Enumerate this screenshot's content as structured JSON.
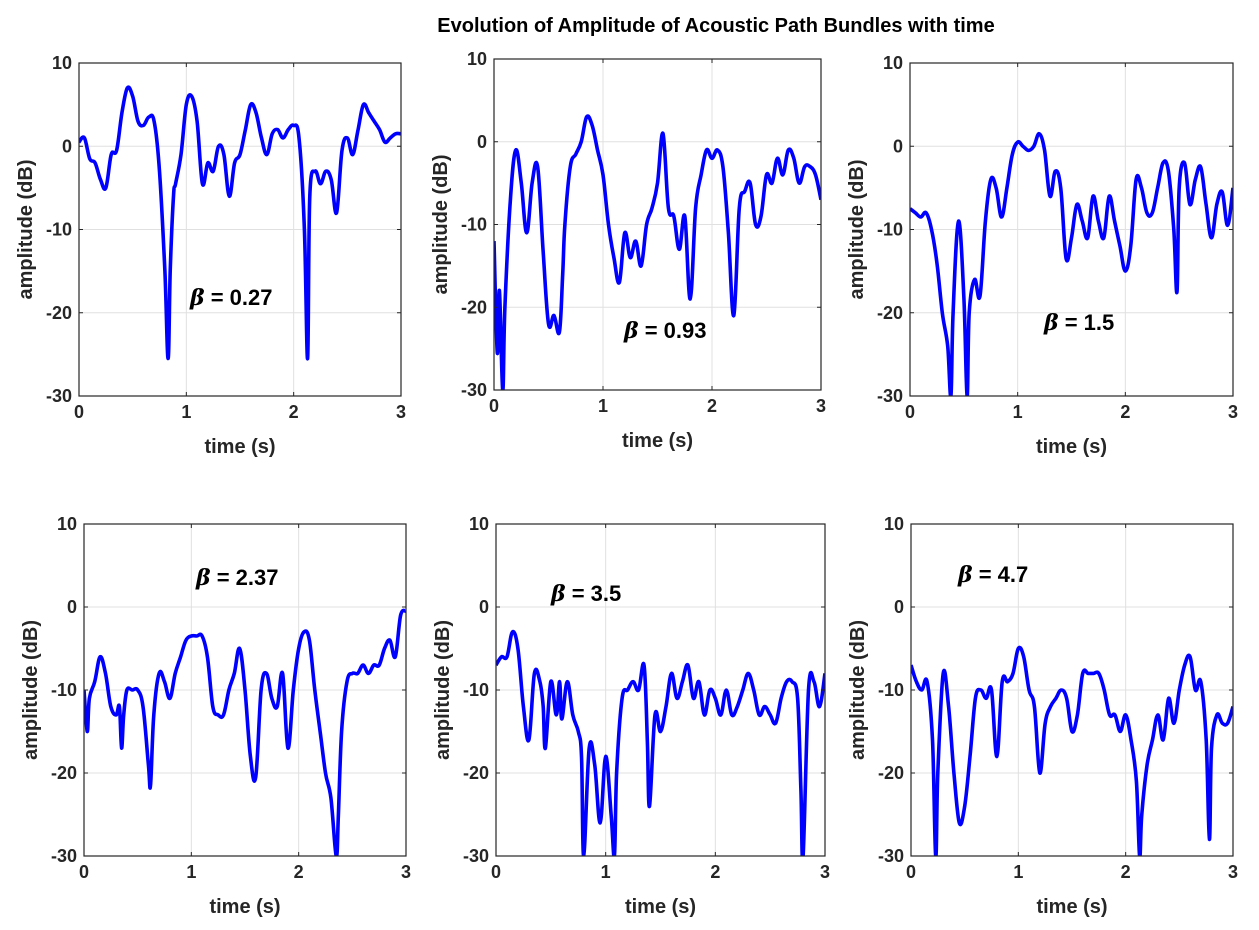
{
  "figure": {
    "title": "Evolution of Amplitude of Acoustic Path Bundles with time",
    "line_color": "#0000ff",
    "grid_color": "#e0e0e0",
    "axis_color": "#262626"
  },
  "chart_data": [
    {
      "type": "line",
      "xlabel": "time (s)",
      "ylabel": "amplitude (dB)",
      "xlim": [
        0,
        3
      ],
      "ylim": [
        -30,
        10
      ],
      "xticks": [
        "0",
        "1",
        "2",
        "3"
      ],
      "yticks": [
        "10",
        "0",
        "-10",
        "-20",
        "-30"
      ],
      "grid": true,
      "annotation": {
        "symbol": "β",
        "text": " = 0.27"
      },
      "x": [
        0,
        0.05,
        0.1,
        0.15,
        0.2,
        0.25,
        0.3,
        0.35,
        0.4,
        0.45,
        0.5,
        0.55,
        0.6,
        0.65,
        0.7,
        0.75,
        0.8,
        0.83,
        0.85,
        0.88,
        0.9,
        0.95,
        1.0,
        1.05,
        1.1,
        1.15,
        1.2,
        1.25,
        1.3,
        1.35,
        1.4,
        1.45,
        1.5,
        1.55,
        1.6,
        1.65,
        1.7,
        1.75,
        1.8,
        1.85,
        1.9,
        1.95,
        2.0,
        2.05,
        2.1,
        2.13,
        2.15,
        2.2,
        2.25,
        2.3,
        2.35,
        2.4,
        2.45,
        2.5,
        2.55,
        2.6,
        2.65,
        2.7,
        2.75,
        2.8,
        2.85,
        2.9,
        2.95,
        3.0
      ],
      "y": [
        0.5,
        1.0,
        -1.5,
        -2.0,
        -4.0,
        -5.0,
        -1.0,
        -0.5,
        4.0,
        7.0,
        6.0,
        3.0,
        2.5,
        3.5,
        3.0,
        -3.0,
        -15.0,
        -25.5,
        -15.0,
        -6.0,
        -4.5,
        -1.0,
        5.0,
        6.0,
        3.0,
        -4.5,
        -2.0,
        -3.0,
        0.0,
        -1.0,
        -6.0,
        -2.0,
        -1.0,
        2.0,
        5.0,
        4.0,
        1.0,
        -1.0,
        1.5,
        2.0,
        1.0,
        2.0,
        2.5,
        1.0,
        -10.0,
        -25.5,
        -6.0,
        -3.0,
        -4.5,
        -3.0,
        -4.0,
        -8.0,
        -0.5,
        1.0,
        -1.0,
        2.0,
        5.0,
        4.0,
        3.0,
        2.0,
        0.5,
        1.0,
        1.5,
        1.5
      ]
    },
    {
      "type": "line",
      "xlabel": "time (s)",
      "ylabel": "amplitude (dB)",
      "xlim": [
        0,
        3
      ],
      "ylim": [
        -30,
        10
      ],
      "xticks": [
        "0",
        "1",
        "2",
        "3"
      ],
      "yticks": [
        "10",
        "0",
        "-10",
        "-20",
        "-30"
      ],
      "grid": true,
      "annotation": {
        "symbol": "β",
        "text": " = 0.93"
      },
      "x": [
        0,
        0.03,
        0.05,
        0.08,
        0.1,
        0.15,
        0.2,
        0.25,
        0.3,
        0.35,
        0.4,
        0.45,
        0.5,
        0.55,
        0.6,
        0.63,
        0.65,
        0.7,
        0.75,
        0.8,
        0.85,
        0.9,
        0.95,
        1.0,
        1.05,
        1.1,
        1.15,
        1.2,
        1.25,
        1.3,
        1.35,
        1.4,
        1.45,
        1.5,
        1.55,
        1.6,
        1.65,
        1.7,
        1.75,
        1.8,
        1.85,
        1.9,
        1.95,
        2.0,
        2.05,
        2.1,
        2.15,
        2.2,
        2.25,
        2.3,
        2.35,
        2.4,
        2.45,
        2.5,
        2.55,
        2.6,
        2.65,
        2.7,
        2.75,
        2.8,
        2.85,
        2.9,
        2.95,
        3.0
      ],
      "y": [
        -12.0,
        -25.5,
        -18.0,
        -30.0,
        -20.0,
        -7.0,
        -1.0,
        -5.0,
        -11.0,
        -5.0,
        -3.0,
        -13.0,
        -22.0,
        -21.0,
        -23.0,
        -16.0,
        -10.0,
        -3.0,
        -1.5,
        0.0,
        3.0,
        2.0,
        -1.0,
        -4.0,
        -10.0,
        -14.0,
        -17.0,
        -11.0,
        -14.0,
        -12.0,
        -15.0,
        -10.0,
        -8.0,
        -5.0,
        1.0,
        -8.0,
        -9.0,
        -13.0,
        -9.0,
        -19.0,
        -8.0,
        -4.0,
        -1.0,
        -2.0,
        -1.0,
        -3.0,
        -11.0,
        -21.0,
        -8.0,
        -6.0,
        -5.0,
        -10.0,
        -9.0,
        -4.0,
        -5.0,
        -2.0,
        -4.0,
        -1.0,
        -2.0,
        -5.0,
        -3.0,
        -3.0,
        -4.0,
        -7.0
      ]
    },
    {
      "type": "line",
      "xlabel": "time (s)",
      "ylabel": "amplitude (dB)",
      "xlim": [
        0,
        3
      ],
      "ylim": [
        -30,
        10
      ],
      "xticks": [
        "0",
        "1",
        "2",
        "3"
      ],
      "yticks": [
        "10",
        "0",
        "-10",
        "-20",
        "-30"
      ],
      "grid": true,
      "annotation": {
        "symbol": "β",
        "text": " = 1.5"
      },
      "x": [
        0,
        0.05,
        0.1,
        0.15,
        0.2,
        0.25,
        0.3,
        0.35,
        0.38,
        0.4,
        0.45,
        0.5,
        0.53,
        0.55,
        0.6,
        0.65,
        0.7,
        0.75,
        0.8,
        0.85,
        0.9,
        0.95,
        1.0,
        1.05,
        1.1,
        1.15,
        1.2,
        1.25,
        1.3,
        1.35,
        1.4,
        1.45,
        1.5,
        1.55,
        1.6,
        1.65,
        1.7,
        1.75,
        1.8,
        1.85,
        1.9,
        1.95,
        2.0,
        2.05,
        2.1,
        2.15,
        2.2,
        2.25,
        2.3,
        2.35,
        2.4,
        2.45,
        2.48,
        2.5,
        2.55,
        2.6,
        2.65,
        2.7,
        2.75,
        2.8,
        2.85,
        2.9,
        2.95,
        3.0
      ],
      "y": [
        -7.5,
        -8.0,
        -8.5,
        -8.0,
        -10.0,
        -14.0,
        -20.0,
        -24.0,
        -30.0,
        -20.0,
        -9.0,
        -18.0,
        -30.0,
        -20.0,
        -16.0,
        -18.0,
        -9.0,
        -4.0,
        -5.0,
        -8.5,
        -5.0,
        -1.0,
        0.5,
        0.0,
        -0.5,
        0.0,
        1.5,
        -0.5,
        -6.0,
        -3.0,
        -5.0,
        -13.5,
        -11.0,
        -7.0,
        -9.0,
        -11.0,
        -6.0,
        -9.0,
        -11.0,
        -6.0,
        -9.0,
        -12.0,
        -15.0,
        -12.0,
        -4.0,
        -5.0,
        -8.0,
        -8.0,
        -5.0,
        -2.0,
        -3.0,
        -10.0,
        -17.5,
        -5.0,
        -2.0,
        -7.0,
        -4.0,
        -2.5,
        -7.0,
        -11.0,
        -7.0,
        -5.5,
        -9.5,
        -5.0
      ]
    },
    {
      "type": "line",
      "xlabel": "time (s)",
      "ylabel": "amplitude (dB)",
      "xlim": [
        0,
        3
      ],
      "ylim": [
        -30,
        10
      ],
      "xticks": [
        "0",
        "1",
        "2",
        "3"
      ],
      "yticks": [
        "10",
        "0",
        "-10",
        "-20",
        "-30"
      ],
      "grid": true,
      "annotation": {
        "symbol": "β",
        "text": " = 2.37"
      },
      "x": [
        0,
        0.03,
        0.05,
        0.1,
        0.15,
        0.2,
        0.25,
        0.3,
        0.33,
        0.35,
        0.37,
        0.4,
        0.45,
        0.5,
        0.55,
        0.6,
        0.62,
        0.65,
        0.7,
        0.75,
        0.8,
        0.85,
        0.9,
        0.95,
        1.0,
        1.05,
        1.1,
        1.15,
        1.2,
        1.25,
        1.3,
        1.35,
        1.4,
        1.45,
        1.5,
        1.55,
        1.6,
        1.65,
        1.7,
        1.75,
        1.8,
        1.85,
        1.9,
        1.95,
        2.0,
        2.05,
        2.1,
        2.15,
        2.2,
        2.25,
        2.3,
        2.35,
        2.37,
        2.4,
        2.45,
        2.5,
        2.55,
        2.6,
        2.65,
        2.7,
        2.75,
        2.8,
        2.85,
        2.9,
        2.95,
        3.0
      ],
      "y": [
        -10.0,
        -15.0,
        -11.0,
        -9.0,
        -6.0,
        -8.0,
        -12.0,
        -13.0,
        -12.0,
        -17.0,
        -13.0,
        -10.0,
        -10.0,
        -10.0,
        -12.0,
        -19.0,
        -21.5,
        -13.0,
        -8.0,
        -9.0,
        -11.0,
        -8.0,
        -6.0,
        -4.0,
        -3.5,
        -3.5,
        -3.5,
        -6.0,
        -12.0,
        -13.0,
        -13.0,
        -10.0,
        -8.0,
        -5.0,
        -10.0,
        -18.0,
        -20.5,
        -10.0,
        -8.0,
        -11.0,
        -12.0,
        -8.0,
        -17.0,
        -10.0,
        -5.0,
        -3.0,
        -4.0,
        -10.0,
        -15.0,
        -20.0,
        -23.0,
        -30.0,
        -25.0,
        -15.0,
        -9.0,
        -8.0,
        -8.0,
        -7.0,
        -8.0,
        -7.0,
        -7.0,
        -5.0,
        -4.0,
        -6.0,
        -1.0,
        -0.5
      ]
    },
    {
      "type": "line",
      "xlabel": "time (s)",
      "ylabel": "amplitude (dB)",
      "xlim": [
        0,
        3
      ],
      "ylim": [
        -30,
        10
      ],
      "xticks": [
        "0",
        "1",
        "2",
        "3"
      ],
      "yticks": [
        "10",
        "0",
        "-10",
        "-20",
        "-30"
      ],
      "grid": true,
      "annotation": {
        "symbol": "β",
        "text": " = 3.5"
      },
      "x": [
        0,
        0.05,
        0.1,
        0.15,
        0.2,
        0.25,
        0.3,
        0.35,
        0.4,
        0.43,
        0.45,
        0.5,
        0.55,
        0.58,
        0.6,
        0.65,
        0.7,
        0.75,
        0.78,
        0.8,
        0.85,
        0.9,
        0.95,
        1.0,
        1.05,
        1.08,
        1.1,
        1.15,
        1.2,
        1.25,
        1.3,
        1.35,
        1.38,
        1.4,
        1.45,
        1.5,
        1.55,
        1.6,
        1.65,
        1.7,
        1.75,
        1.8,
        1.85,
        1.9,
        1.95,
        2.0,
        2.05,
        2.1,
        2.15,
        2.2,
        2.25,
        2.3,
        2.35,
        2.4,
        2.45,
        2.5,
        2.55,
        2.6,
        2.65,
        2.7,
        2.75,
        2.78,
        2.8,
        2.85,
        2.9,
        2.95,
        3.0
      ],
      "y": [
        -7.0,
        -6.0,
        -6.0,
        -3.0,
        -5.0,
        -12.0,
        -16.0,
        -8.0,
        -9.0,
        -12.0,
        -17.0,
        -9.0,
        -13.0,
        -9.0,
        -13.5,
        -9.0,
        -13.0,
        -15.0,
        -18.0,
        -30.0,
        -17.0,
        -19.0,
        -26.0,
        -18.0,
        -25.0,
        -30.0,
        -20.0,
        -11.0,
        -10.0,
        -9.0,
        -10.0,
        -7.0,
        -16.0,
        -24.0,
        -13.0,
        -15.0,
        -12.0,
        -8.0,
        -11.0,
        -9.0,
        -7.0,
        -11.0,
        -9.0,
        -13.0,
        -10.0,
        -11.0,
        -13.0,
        -10.0,
        -13.0,
        -12.0,
        -10.0,
        -8.0,
        -10.0,
        -13.0,
        -12.0,
        -13.0,
        -14.0,
        -11.0,
        -9.0,
        -9.0,
        -11.0,
        -22.0,
        -30.0,
        -10.0,
        -9.0,
        -12.0,
        -8.0
      ]
    },
    {
      "type": "line",
      "xlabel": "time (s)",
      "ylabel": "amplitude (dB)",
      "xlim": [
        0,
        3
      ],
      "ylim": [
        -30,
        10
      ],
      "xticks": [
        "0",
        "1",
        "2",
        "3"
      ],
      "yticks": [
        "10",
        "0",
        "-10",
        "-20",
        "-30"
      ],
      "grid": true,
      "annotation": {
        "symbol": "β",
        "text": " = 4.7"
      },
      "x": [
        0,
        0.05,
        0.1,
        0.15,
        0.2,
        0.23,
        0.25,
        0.3,
        0.35,
        0.4,
        0.45,
        0.5,
        0.55,
        0.6,
        0.65,
        0.7,
        0.75,
        0.8,
        0.85,
        0.9,
        0.95,
        1.0,
        1.05,
        1.1,
        1.15,
        1.2,
        1.25,
        1.3,
        1.35,
        1.4,
        1.45,
        1.5,
        1.55,
        1.6,
        1.65,
        1.7,
        1.75,
        1.8,
        1.85,
        1.9,
        1.95,
        2.0,
        2.05,
        2.1,
        2.13,
        2.15,
        2.2,
        2.25,
        2.3,
        2.35,
        2.4,
        2.45,
        2.5,
        2.55,
        2.6,
        2.65,
        2.7,
        2.75,
        2.78,
        2.8,
        2.85,
        2.9,
        2.95,
        3.0
      ],
      "y": [
        -7.0,
        -9.0,
        -10.0,
        -9.0,
        -16.0,
        -30.0,
        -20.0,
        -8.0,
        -12.0,
        -20.0,
        -26.0,
        -24.0,
        -18.0,
        -11.0,
        -10.0,
        -11.0,
        -10.0,
        -18.0,
        -9.0,
        -9.0,
        -8.0,
        -5.0,
        -6.0,
        -10.0,
        -12.0,
        -20.0,
        -14.0,
        -12.0,
        -11.0,
        -10.0,
        -11.0,
        -15.0,
        -13.0,
        -8.0,
        -8.0,
        -8.0,
        -8.0,
        -10.0,
        -13.0,
        -13.0,
        -15.0,
        -13.0,
        -16.0,
        -21.0,
        -30.0,
        -25.0,
        -19.0,
        -16.0,
        -13.0,
        -16.0,
        -11.0,
        -14.0,
        -10.0,
        -7.0,
        -6.0,
        -10.0,
        -9.0,
        -16.0,
        -28.0,
        -17.0,
        -13.0,
        -14.0,
        -14.0,
        -12.0
      ]
    }
  ]
}
